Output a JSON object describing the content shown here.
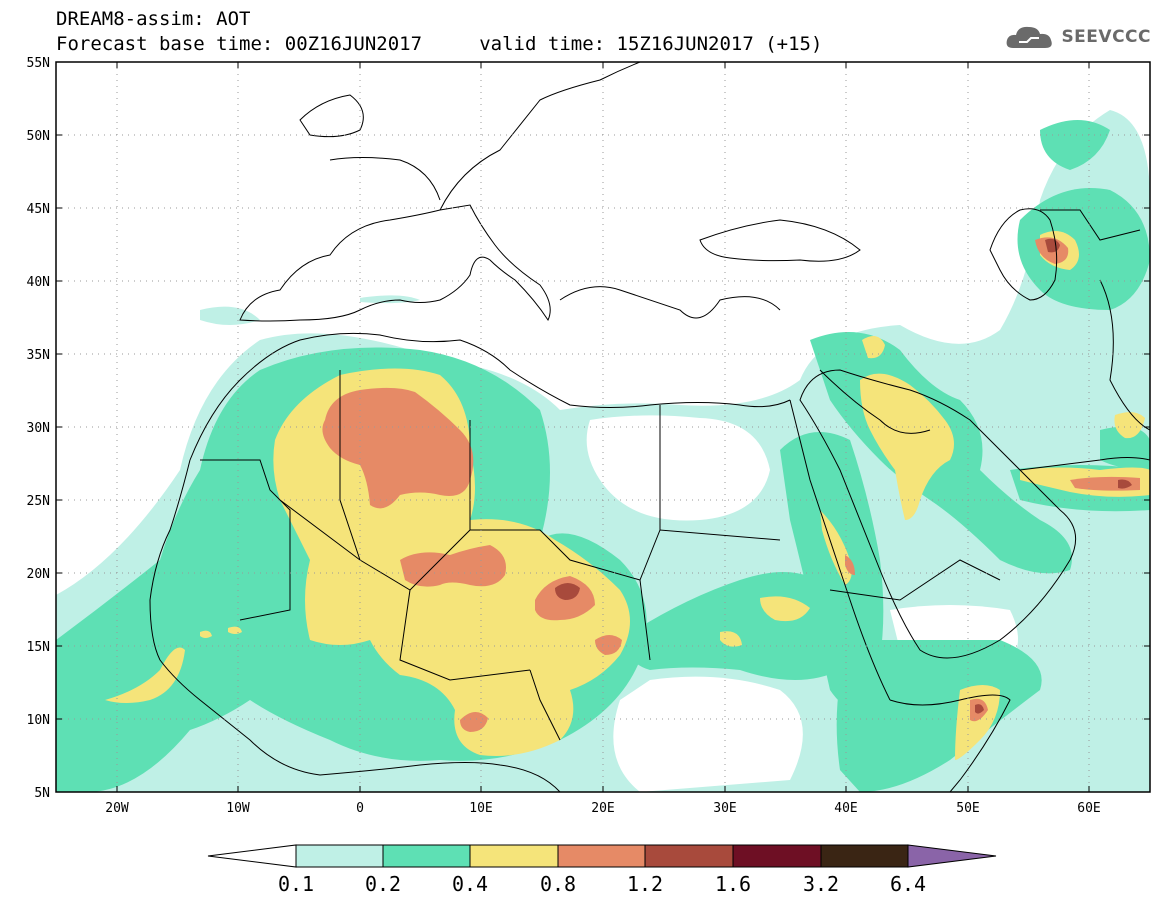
{
  "header": {
    "line1": "DREAM8-assim: AOT",
    "line2": "Forecast base time: 00Z16JUN2017     valid time: 15Z16JUN2017 (+15)",
    "logo_text": "SEEVCCC"
  },
  "map": {
    "lon_range": [
      -25,
      65
    ],
    "lat_range": [
      5,
      55
    ],
    "lat_labels": [
      "5N",
      "10N",
      "15N",
      "20N",
      "25N",
      "30N",
      "35N",
      "40N",
      "45N",
      "50N",
      "55N"
    ],
    "lon_labels": [
      "20W",
      "10W",
      "0",
      "10E",
      "20E",
      "30E",
      "40E",
      "50E",
      "60E"
    ],
    "grid": "dotted"
  },
  "colorbar": {
    "labels": [
      "0.1",
      "0.2",
      "0.4",
      "0.8",
      "1.2",
      "1.6",
      "3.2",
      "6.4"
    ],
    "colors": [
      "#ffffff",
      "#bff0e6",
      "#5ee0b4",
      "#f5e47a",
      "#e68a66",
      "#a84a3c",
      "#6e0f24",
      "#3a2514",
      "#8a64a8"
    ]
  }
}
